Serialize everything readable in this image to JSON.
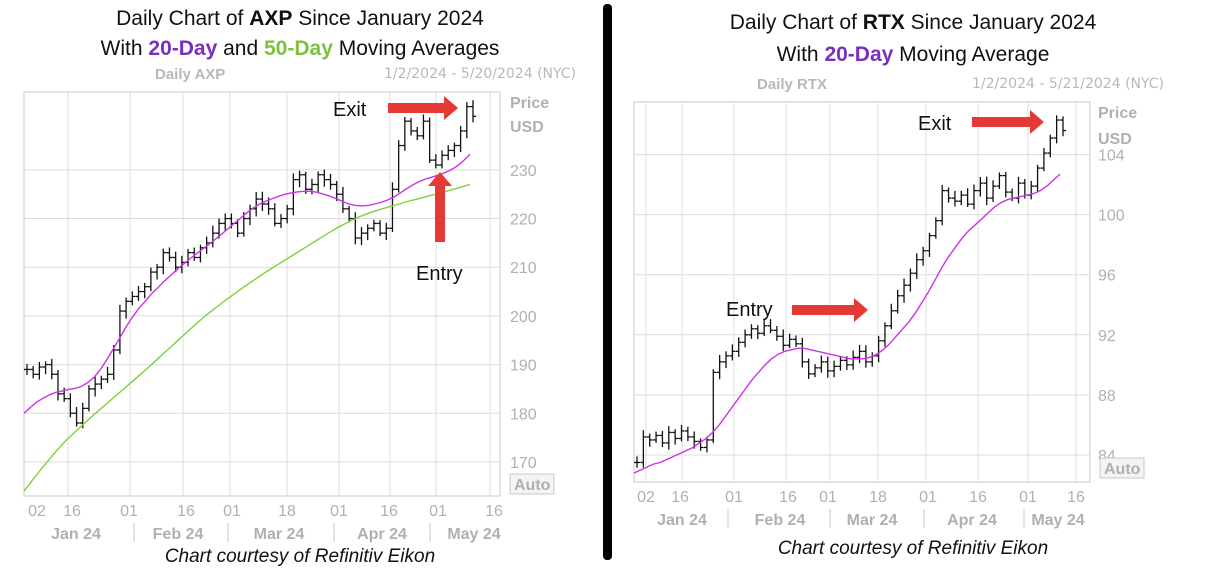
{
  "colors": {
    "ma20": "#cc33e6",
    "ma50": "#7cd23c",
    "price": "#111111",
    "arrow": "#e53935",
    "grid": "#dcdcdc"
  },
  "panels": [
    {
      "title_prefix": "Daily Chart of ",
      "ticker": "AXP",
      "title_suffix": " Since January 2024",
      "line2_prefix": "With ",
      "ma20_label": "20-Day",
      "line2_mid": " and ",
      "ma50_label": "50-Day",
      "line2_suffix": " Moving Averages",
      "chart_label": "Daily AXP",
      "date_range": "1/2/2024 - 5/20/2024 (NYC)",
      "credit": "Chart courtesy of Refinitiv Eikon"
    },
    {
      "title_prefix": "Daily Chart of ",
      "ticker": "RTX",
      "title_suffix": " Since January 2024",
      "line2_prefix": "With ",
      "ma20_label": "20-Day",
      "line2_suffix": " Moving Average",
      "chart_label": "Daily RTX",
      "date_range": "1/2/2024 - 5/21/2024 (NYC)",
      "credit": "Chart courtesy of Refinitiv Eikon"
    }
  ],
  "chart_data": [
    {
      "type": "ohlc",
      "ticker": "AXP",
      "ylim": [
        163,
        246
      ],
      "y_ticks": [
        170,
        180,
        190,
        200,
        210,
        220,
        230
      ],
      "axis_caption": [
        "Price",
        "USD"
      ],
      "auto_label": "Auto",
      "x_day_ticks": [
        "02",
        "16",
        "01",
        "16",
        "01",
        "18",
        "01",
        "16",
        "01",
        "16"
      ],
      "x_month_labels": [
        "Jan 24",
        "Feb 24",
        "Mar 24",
        "Apr 24",
        "May 24"
      ],
      "closes": [
        189,
        188,
        189.5,
        190,
        188,
        184,
        183,
        180,
        178,
        181,
        185,
        186,
        187,
        188,
        193,
        201,
        203,
        204,
        205,
        206,
        209,
        210,
        213,
        212,
        210,
        211,
        213,
        212,
        214,
        215,
        217,
        219,
        220,
        219,
        217,
        220,
        222,
        224,
        223,
        222,
        219,
        220,
        222,
        228,
        229,
        226,
        227,
        229,
        228,
        227,
        225,
        222,
        220,
        216,
        217,
        218,
        219,
        217,
        218,
        226,
        235,
        240,
        238,
        237,
        240,
        232,
        231,
        233,
        234,
        235,
        238,
        243,
        241
      ],
      "ma20": [
        180,
        181.2,
        182.3,
        183.1,
        183.8,
        184.3,
        184.6,
        184.9,
        185.1,
        185.5,
        186.3,
        187.4,
        189,
        191,
        193.2,
        195.4,
        197.7,
        199.7,
        201.5,
        203,
        204.5,
        205.8,
        207.1,
        208.3,
        209.5,
        210.6,
        211.7,
        212.7,
        213.7,
        214.7,
        215.7,
        216.8,
        217.9,
        219,
        220.1,
        221.2,
        222.2,
        223,
        223.6,
        224.1,
        224.6,
        225,
        225.3,
        225.5,
        225.6,
        225.6,
        225.4,
        225,
        224.6,
        224.1,
        223.5,
        223,
        222.7,
        222.6,
        222.7,
        223,
        223.3,
        223.8,
        224.4,
        225.2,
        226.1,
        226.9,
        227.6,
        228.1,
        228.5,
        228.9,
        229.4,
        230,
        230.8,
        231.9,
        233.2
      ],
      "ma50": [
        164,
        166.7,
        169.3,
        171.8,
        174.1,
        176.1,
        178,
        179.9,
        181.7,
        183.5,
        185.3,
        187.1,
        188.9,
        190.8,
        192.7,
        194.6,
        196.5,
        198.4,
        200.2,
        201.8,
        203.4,
        204.9,
        206.4,
        207.8,
        209.2,
        210.5,
        211.8,
        213.1,
        214.4,
        215.7,
        217,
        218.2,
        219.3,
        220.3,
        221.1,
        221.8,
        222.4,
        223,
        223.6,
        224.1,
        224.7,
        225.2,
        225.8,
        226.4,
        227
      ],
      "annotations": [
        {
          "text": "Exit",
          "arrow": "right"
        },
        {
          "text": "Entry",
          "arrow": "up"
        }
      ]
    },
    {
      "type": "ohlc",
      "ticker": "RTX",
      "ylim": [
        82.2,
        107.5
      ],
      "y_ticks": [
        84,
        88,
        92,
        96,
        100,
        104
      ],
      "axis_caption": [
        "Price",
        "USD"
      ],
      "auto_label": "Auto",
      "x_day_ticks": [
        "02",
        "16",
        "01",
        "16",
        "01",
        "18",
        "01",
        "16",
        "01",
        "16"
      ],
      "x_month_labels": [
        "Jan 24",
        "Feb 24",
        "Mar 24",
        "Apr 24",
        "May 24"
      ],
      "closes": [
        83.5,
        85.2,
        85,
        85.3,
        84.8,
        85.5,
        85.1,
        85.6,
        85.2,
        84.9,
        84.5,
        85,
        89.5,
        90.2,
        90.6,
        90.9,
        91.5,
        92,
        92.4,
        92.1,
        92.6,
        92.3,
        91.9,
        91.3,
        91.7,
        91.4,
        90.2,
        89.4,
        89.8,
        90.2,
        89.6,
        89.9,
        90.3,
        90,
        90.5,
        90.9,
        90.2,
        90.6,
        91.6,
        92.6,
        93.6,
        94.6,
        95.3,
        96.1,
        97,
        97.6,
        98.6,
        99.6,
        101.6,
        101.1,
        100.9,
        101.3,
        100.7,
        101.6,
        102.1,
        101.1,
        101.9,
        102.6,
        101.5,
        101.1,
        102.1,
        101.3,
        101.9,
        103.1,
        104.1,
        105.1,
        106.3,
        105.6
      ],
      "ma20": [
        82.8,
        83,
        83.2,
        83.4,
        83.5,
        83.7,
        83.9,
        84.1,
        84.3,
        84.5,
        84.8,
        85.1,
        85.5,
        86,
        86.6,
        87.2,
        87.8,
        88.4,
        89,
        89.5,
        90,
        90.4,
        90.7,
        90.9,
        91,
        91.1,
        91.1,
        91,
        90.9,
        90.8,
        90.7,
        90.6,
        90.5,
        90.4,
        90.4,
        90.4,
        90.5,
        90.7,
        91,
        91.4,
        91.9,
        92.4,
        92.9,
        93.5,
        94.2,
        94.9,
        95.7,
        96.5,
        97.2,
        97.8,
        98.4,
        98.9,
        99.3,
        99.7,
        100.1,
        100.5,
        100.8,
        101,
        101.1,
        101.2,
        101.3,
        101.4,
        101.6,
        101.9,
        102.3,
        102.7
      ],
      "annotations": [
        {
          "text": "Exit",
          "arrow": "right"
        },
        {
          "text": "Entry",
          "arrow": "right"
        }
      ]
    }
  ]
}
